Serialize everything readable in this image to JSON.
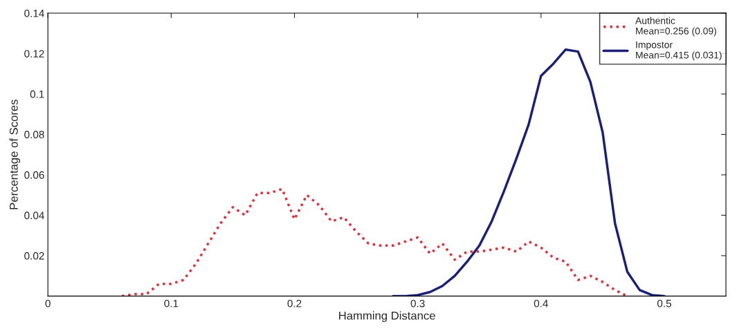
{
  "chart_data": {
    "type": "line",
    "xlabel": "Hamming Distance",
    "ylabel": "Percentage of Scores",
    "xlim": [
      0,
      0.55
    ],
    "xticks": [
      0,
      0.1,
      0.2,
      0.3,
      0.4,
      0.5
    ],
    "ylim": [
      0,
      0.14
    ],
    "yticks": [
      0.02,
      0.04,
      0.06,
      0.08,
      0.1,
      0.12,
      0.14
    ],
    "grid": false,
    "legend": "top right",
    "series": [
      {
        "name": "Authentic\nMean=0.256 (0.09)",
        "color": "#e0303c",
        "line_style": "dotted",
        "x": [
          0.06,
          0.07,
          0.08,
          0.09,
          0.1,
          0.11,
          0.12,
          0.13,
          0.14,
          0.15,
          0.16,
          0.17,
          0.18,
          0.19,
          0.2,
          0.21,
          0.22,
          0.23,
          0.24,
          0.25,
          0.26,
          0.27,
          0.28,
          0.29,
          0.3,
          0.31,
          0.32,
          0.33,
          0.34,
          0.35,
          0.36,
          0.37,
          0.38,
          0.39,
          0.4,
          0.41,
          0.42,
          0.43,
          0.44,
          0.45,
          0.46,
          0.47
        ],
        "values": [
          0,
          0.001,
          0.001,
          0.006,
          0.006,
          0.008,
          0.016,
          0.026,
          0.036,
          0.044,
          0.04,
          0.051,
          0.051,
          0.053,
          0.038,
          0.05,
          0.045,
          0.037,
          0.039,
          0.032,
          0.026,
          0.025,
          0.025,
          0.027,
          0.029,
          0.021,
          0.026,
          0.018,
          0.022,
          0.022,
          0.023,
          0.024,
          0.022,
          0.027,
          0.024,
          0.019,
          0.017,
          0.008,
          0.01,
          0.007,
          0.003,
          0
        ]
      },
      {
        "name": "Impostor\nMean=0.415 (0.031)",
        "color": "#1a1f7a",
        "line_style": "solid",
        "x": [
          0.28,
          0.29,
          0.3,
          0.31,
          0.32,
          0.33,
          0.34,
          0.35,
          0.36,
          0.37,
          0.38,
          0.39,
          0.4,
          0.41,
          0.42,
          0.43,
          0.44,
          0.45,
          0.46,
          0.47,
          0.48,
          0.49,
          0.5
        ],
        "values": [
          0,
          0,
          0.0005,
          0.002,
          0.005,
          0.01,
          0.017,
          0.025,
          0.037,
          0.052,
          0.068,
          0.085,
          0.109,
          0.115,
          0.122,
          0.121,
          0.106,
          0.081,
          0.036,
          0.012,
          0.003,
          0.0005,
          0
        ]
      }
    ]
  }
}
